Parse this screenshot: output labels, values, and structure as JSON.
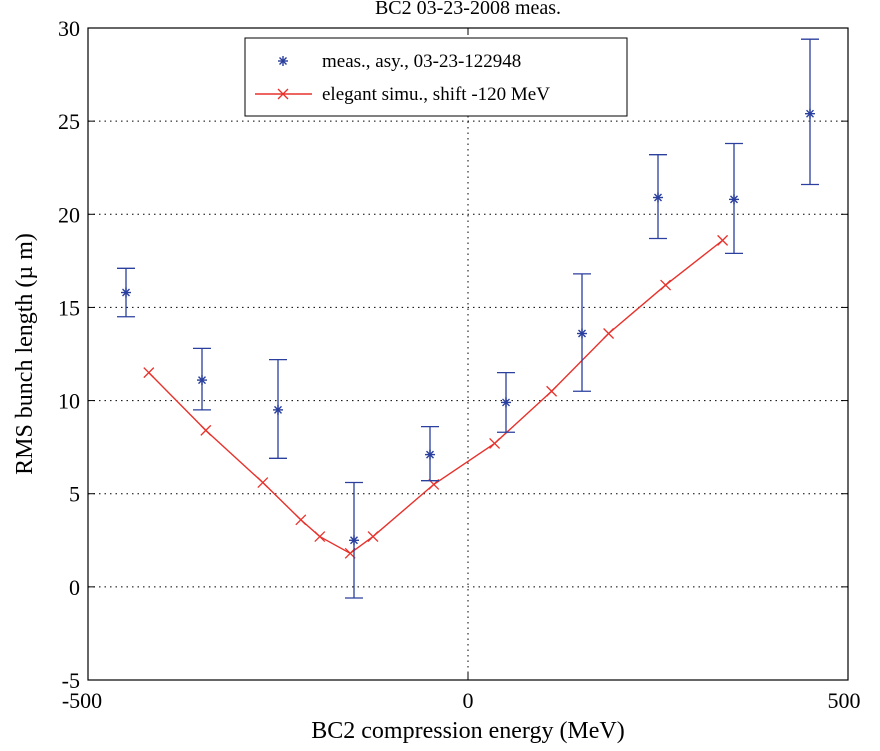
{
  "chart_data": {
    "type": "scatter",
    "title": "BC2 03-23-2008 meas.",
    "xlabel": "BC2 compression energy (MeV)",
    "ylabel": "RMS bunch length (µ m)",
    "xlim": [
      -500,
      500
    ],
    "ylim": [
      -5,
      30
    ],
    "x_ticks": [
      "-500",
      "0",
      "500"
    ],
    "y_ticks": [
      "-5",
      "0",
      "5",
      "10",
      "15",
      "20",
      "25",
      "30"
    ],
    "grid": true,
    "legend_position": "top-center",
    "colors": {
      "measurement": "#2a3f9e",
      "simulation": "#e8312b"
    },
    "series": [
      {
        "name": "meas., asy., 03-23-122948",
        "marker": "asterisk",
        "x": [
          -450,
          -350,
          -250,
          -150,
          -50,
          50,
          150,
          250,
          350,
          450
        ],
        "y": [
          15.8,
          11.1,
          9.5,
          2.5,
          7.1,
          9.9,
          13.6,
          20.9,
          20.8,
          25.4
        ],
        "err_low": [
          14.5,
          9.5,
          6.9,
          -0.6,
          5.7,
          8.3,
          10.5,
          18.7,
          17.9,
          21.6
        ],
        "err_high": [
          17.1,
          12.8,
          12.2,
          5.6,
          8.6,
          11.5,
          16.8,
          23.2,
          23.8,
          29.4
        ]
      },
      {
        "name": "elegant simu., shift -120 MeV",
        "marker": "x",
        "line": true,
        "x": [
          -420,
          -345,
          -270,
          -220,
          -195,
          -155,
          -125,
          -45,
          35,
          110,
          185,
          260,
          335
        ],
        "y": [
          11.5,
          8.4,
          5.6,
          3.6,
          2.7,
          1.8,
          2.7,
          5.5,
          7.7,
          10.5,
          13.6,
          16.2,
          18.6
        ]
      }
    ]
  }
}
